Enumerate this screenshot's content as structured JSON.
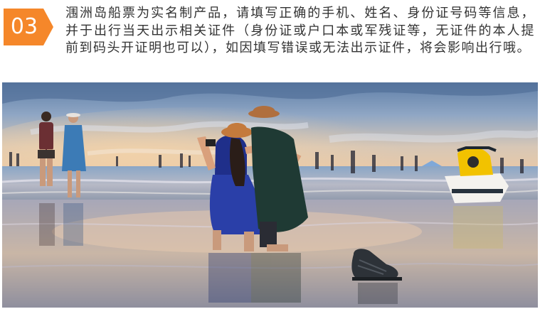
{
  "step": {
    "number": "03",
    "color": "#f5872a"
  },
  "notice": {
    "text": "涠洲岛船票为实名制产品，请填写正确的手机、姓名、身份证号码等信息，并于出行当天出示相关证件（身份证或户口本或军残证等，无证件的本人提前到码头开证明也可以），如因填写错误或无法出示证件，将会影响出行哦。"
  },
  "photo": {
    "subject": "beach-scene-photo"
  }
}
